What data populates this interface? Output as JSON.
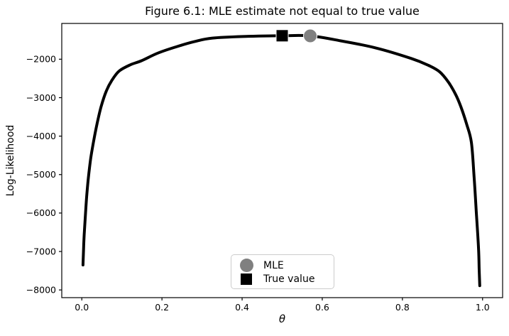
{
  "chart_data": {
    "type": "line",
    "title": "Figure 6.1: MLE estimate not equal to true value",
    "xlabel": "θ",
    "ylabel": "Log-Likelihood",
    "xlim": [
      -0.05,
      1.05
    ],
    "ylim": [
      -8200,
      -1070
    ],
    "grid": false,
    "background": "#ffffff",
    "frame_color": "#000000",
    "xticks": {
      "values": [
        0.0,
        0.2,
        0.4,
        0.6,
        0.8,
        1.0
      ],
      "labels": [
        "0.0",
        "0.2",
        "0.4",
        "0.6",
        "0.8",
        "1.0"
      ]
    },
    "yticks": {
      "values": [
        -2000,
        -3000,
        -4000,
        -5000,
        -6000,
        -7000,
        -8000
      ],
      "labels": [
        "−2000",
        "−3000",
        "−4000",
        "−5000",
        "−6000",
        "−7000",
        "−8000"
      ]
    },
    "series": [
      {
        "name": "log-likelihood-curve",
        "color": "#000000",
        "linewidth": 4,
        "points": [
          [
            0.003,
            -7350
          ],
          [
            0.0045,
            -6900
          ],
          [
            0.006,
            -6560
          ],
          [
            0.0094,
            -6000
          ],
          [
            0.0125,
            -5520
          ],
          [
            0.0165,
            -5080
          ],
          [
            0.022,
            -4600
          ],
          [
            0.029,
            -4160
          ],
          [
            0.038,
            -3680
          ],
          [
            0.048,
            -3240
          ],
          [
            0.061,
            -2830
          ],
          [
            0.075,
            -2550
          ],
          [
            0.093,
            -2310
          ],
          [
            0.12,
            -2150
          ],
          [
            0.149,
            -2040
          ],
          [
            0.19,
            -1840
          ],
          [
            0.238,
            -1670
          ],
          [
            0.28,
            -1545
          ],
          [
            0.326,
            -1450
          ],
          [
            0.415,
            -1405
          ],
          [
            0.5,
            -1390
          ],
          [
            0.57,
            -1393
          ],
          [
            0.645,
            -1520
          ],
          [
            0.733,
            -1705
          ],
          [
            0.822,
            -1980
          ],
          [
            0.865,
            -2160
          ],
          [
            0.893,
            -2330
          ],
          [
            0.915,
            -2600
          ],
          [
            0.933,
            -2920
          ],
          [
            0.946,
            -3240
          ],
          [
            0.96,
            -3680
          ],
          [
            0.972,
            -4160
          ],
          [
            0.979,
            -5080
          ],
          [
            0.9845,
            -6000
          ],
          [
            0.99,
            -6930
          ],
          [
            0.9915,
            -7480
          ],
          [
            0.993,
            -7890
          ]
        ]
      }
    ],
    "markers": [
      {
        "name": "MLE",
        "shape": "circle",
        "color": "#808080",
        "x": 0.57,
        "y": -1393,
        "size": 19
      },
      {
        "name": "True value",
        "shape": "square",
        "color": "#000000",
        "x": 0.5,
        "y": -1390,
        "size": 17
      }
    ],
    "legend": {
      "position": "lower center",
      "entries": [
        {
          "label": "MLE",
          "shape": "circle",
          "color": "#808080"
        },
        {
          "label": "True value",
          "shape": "square",
          "color": "#000000"
        }
      ]
    }
  }
}
